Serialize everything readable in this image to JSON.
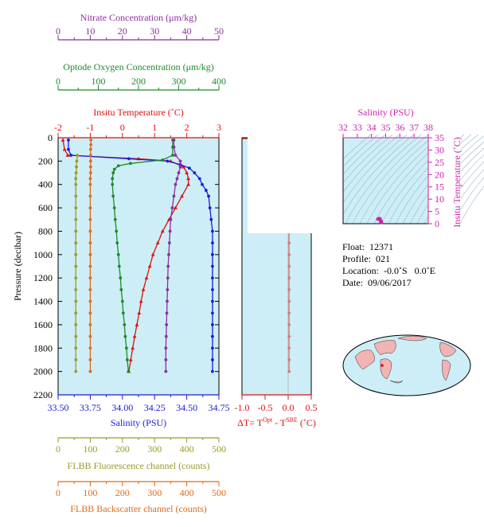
{
  "colors": {
    "nitrate": "#8e2d9e",
    "oxygen": "#1c8a2c",
    "temperature": "#e01010",
    "salinity": "#1a1ae0",
    "fluorescence": "#9a9a2a",
    "backscatter": "#e06a1a",
    "delta": "#f07070",
    "panel_bg": "#cdeef6",
    "magenta": "#cc22aa"
  },
  "axes": {
    "nitrate": {
      "title": "Nitrate Concentration (μm/kg)",
      "min": 0,
      "max": 50,
      "ticks": [
        "0",
        "10",
        "20",
        "30",
        "40",
        "50"
      ]
    },
    "oxygen": {
      "title": "Optode Oxygen Concentration (μm/kg)",
      "min": 0,
      "max": 400,
      "ticks": [
        "0",
        "100",
        "200",
        "300",
        "400"
      ]
    },
    "temperature": {
      "title": "Insitu Temperature (˚C)",
      "min": -2,
      "max": 3,
      "ticks": [
        "-2",
        "-1",
        "0",
        "1",
        "2",
        "3"
      ]
    },
    "salinity": {
      "title": "Salinity (PSU)",
      "min": 33.5,
      "max": 34.75,
      "ticks": [
        "33.50",
        "33.75",
        "34.00",
        "34.25",
        "34.50",
        "34.75"
      ]
    },
    "pressure": {
      "title": "Pressure (decibar)",
      "min": 0,
      "max": 2200,
      "ticks": [
        "0",
        "200",
        "400",
        "600",
        "800",
        "1000",
        "1200",
        "1400",
        "1600",
        "1800",
        "2000",
        "2200"
      ]
    },
    "delta": {
      "title_main": "ΔT= T",
      "sup1": "Opt",
      "mid": " - T",
      "sup2": "SBE",
      "unit": " (˚C)",
      "min": -1.0,
      "max": 0.5,
      "ticks": [
        "-1.0",
        "-0.5",
        "0.0",
        "0.5"
      ]
    },
    "fluorescence": {
      "title": "FLBB Fluorescence channel (counts)",
      "min": 0,
      "max": 500,
      "ticks": [
        "0",
        "100",
        "200",
        "300",
        "400",
        "500"
      ]
    },
    "backscatter": {
      "title": "FLBB Backscatter channel (counts)",
      "min": 0,
      "max": 500,
      "ticks": [
        "0",
        "100",
        "200",
        "300",
        "400",
        "500"
      ]
    },
    "ts_salinity": {
      "title": "Salinity (PSU)",
      "min": 32,
      "max": 38,
      "ticks": [
        "32",
        "33",
        "34",
        "35",
        "36",
        "37",
        "38"
      ]
    },
    "ts_temperature": {
      "title": "Insitu Temperature (˚C)",
      "min": 0,
      "max": 35,
      "ticks": [
        "0",
        "5",
        "10",
        "15",
        "20",
        "25",
        "30",
        "35"
      ]
    }
  },
  "info": {
    "float": "Float:  12371",
    "profile": "Profile:  021",
    "location": "Location:  -0.0˚S   0.0˚E",
    "date": "Date:  09/06/2017"
  },
  "chart_data": {
    "type": "line",
    "y_variable": "Pressure (decibar)",
    "y_reversed": true,
    "series": [
      {
        "name": "Insitu Temperature (˚C)",
        "key": "temperature",
        "marker": "triangle",
        "points": [
          [
            -1.85,
            20
          ],
          [
            -1.8,
            100
          ],
          [
            -1.7,
            150
          ],
          [
            0.5,
            180
          ],
          [
            1.5,
            200
          ],
          [
            1.9,
            250
          ],
          [
            2.0,
            300
          ],
          [
            2.05,
            350
          ],
          [
            2.05,
            400
          ],
          [
            1.85,
            500
          ],
          [
            1.65,
            600
          ],
          [
            1.45,
            700
          ],
          [
            1.25,
            800
          ],
          [
            1.1,
            900
          ],
          [
            0.95,
            1000
          ],
          [
            0.85,
            1100
          ],
          [
            0.75,
            1200
          ],
          [
            0.65,
            1300
          ],
          [
            0.58,
            1400
          ],
          [
            0.52,
            1500
          ],
          [
            0.45,
            1600
          ],
          [
            0.38,
            1700
          ],
          [
            0.32,
            1800
          ],
          [
            0.26,
            1900
          ],
          [
            0.2,
            2000
          ]
        ]
      },
      {
        "name": "Salinity (PSU)",
        "key": "salinity",
        "marker": "circle",
        "points": [
          [
            33.58,
            20
          ],
          [
            33.58,
            100
          ],
          [
            33.6,
            150
          ],
          [
            34.05,
            180
          ],
          [
            34.35,
            200
          ],
          [
            34.45,
            230
          ],
          [
            34.52,
            260
          ],
          [
            34.56,
            300
          ],
          [
            34.6,
            350
          ],
          [
            34.62,
            400
          ],
          [
            34.65,
            450
          ],
          [
            34.67,
            500
          ],
          [
            34.68,
            600
          ],
          [
            34.69,
            700
          ],
          [
            34.7,
            800
          ],
          [
            34.7,
            900
          ],
          [
            34.7,
            1000
          ],
          [
            34.7,
            1100
          ],
          [
            34.7,
            1200
          ],
          [
            34.7,
            1300
          ],
          [
            34.7,
            1400
          ],
          [
            34.7,
            1500
          ],
          [
            34.7,
            1600
          ],
          [
            34.7,
            1700
          ],
          [
            34.7,
            1800
          ],
          [
            34.7,
            1900
          ],
          [
            34.7,
            2000
          ]
        ]
      },
      {
        "name": "Optode Oxygen Concentration (μm/kg)",
        "key": "oxygen",
        "marker": "circle",
        "points": [
          [
            285,
            20
          ],
          [
            285,
            80
          ],
          [
            285,
            150
          ],
          [
            260,
            190
          ],
          [
            180,
            220
          ],
          [
            150,
            240
          ],
          [
            140,
            270
          ],
          [
            137,
            300
          ],
          [
            135,
            350
          ],
          [
            135,
            400
          ],
          [
            137,
            500
          ],
          [
            140,
            600
          ],
          [
            142,
            700
          ],
          [
            145,
            800
          ],
          [
            147,
            900
          ],
          [
            150,
            1000
          ],
          [
            152,
            1100
          ],
          [
            155,
            1200
          ],
          [
            157,
            1300
          ],
          [
            160,
            1400
          ],
          [
            162,
            1500
          ],
          [
            165,
            1600
          ],
          [
            167,
            1700
          ],
          [
            170,
            1800
          ],
          [
            172,
            1900
          ],
          [
            175,
            2000
          ]
        ]
      },
      {
        "name": "Nitrate Concentration (μm/kg)",
        "key": "nitrate",
        "marker": "circle",
        "points": [
          [
            36,
            20
          ],
          [
            36,
            80
          ],
          [
            36.5,
            150
          ],
          [
            38,
            200
          ],
          [
            38,
            250
          ],
          [
            37.5,
            300
          ],
          [
            37,
            350
          ],
          [
            36.5,
            400
          ],
          [
            36,
            500
          ],
          [
            35.5,
            600
          ],
          [
            35,
            700
          ],
          [
            34.8,
            800
          ],
          [
            34.6,
            900
          ],
          [
            34.4,
            1000
          ],
          [
            34.2,
            1100
          ],
          [
            34.1,
            1200
          ],
          [
            34,
            1300
          ],
          [
            33.9,
            1400
          ],
          [
            33.8,
            1500
          ],
          [
            33.7,
            1600
          ],
          [
            33.6,
            1700
          ],
          [
            33.5,
            1800
          ],
          [
            33.5,
            1900
          ],
          [
            33.5,
            2000
          ]
        ]
      },
      {
        "name": "FLBB Fluorescence channel (counts)",
        "key": "fluorescence",
        "marker": "circle",
        "points": [
          [
            60,
            150
          ],
          [
            58,
            200
          ],
          [
            57,
            250
          ],
          [
            56,
            300
          ],
          [
            55,
            350
          ],
          [
            55,
            400
          ],
          [
            55,
            500
          ],
          [
            55,
            600
          ],
          [
            55,
            700
          ],
          [
            55,
            800
          ],
          [
            55,
            900
          ],
          [
            55,
            1000
          ],
          [
            55,
            1100
          ],
          [
            55,
            1200
          ],
          [
            55,
            1300
          ],
          [
            55,
            1400
          ],
          [
            55,
            1500
          ],
          [
            55,
            1600
          ],
          [
            55,
            1700
          ],
          [
            55,
            1800
          ],
          [
            55,
            1900
          ],
          [
            55,
            2000
          ]
        ]
      },
      {
        "name": "FLBB Backscatter channel (counts)",
        "key": "backscatter",
        "marker": "circle",
        "points": [
          [
            102,
            20
          ],
          [
            102,
            60
          ],
          [
            101,
            100
          ],
          [
            101,
            150
          ],
          [
            101,
            200
          ],
          [
            101,
            250
          ],
          [
            101,
            300
          ],
          [
            100,
            350
          ],
          [
            100,
            400
          ],
          [
            100,
            500
          ],
          [
            100,
            600
          ],
          [
            100,
            700
          ],
          [
            100,
            800
          ],
          [
            100,
            900
          ],
          [
            100,
            1000
          ],
          [
            100,
            1100
          ],
          [
            100,
            1200
          ],
          [
            100,
            1300
          ],
          [
            100,
            1400
          ],
          [
            100,
            1500
          ],
          [
            100,
            1600
          ],
          [
            100,
            1700
          ],
          [
            100,
            1800
          ],
          [
            100,
            1900
          ],
          [
            100,
            2000
          ]
        ]
      },
      {
        "name": "ΔT",
        "key": "delta",
        "marker": "circle",
        "points": [
          [
            0.05,
            20
          ],
          [
            0.05,
            100
          ],
          [
            0.05,
            150
          ],
          [
            0.04,
            200
          ],
          [
            0.03,
            250
          ],
          [
            0.02,
            300
          ],
          [
            0.02,
            350
          ],
          [
            0.02,
            400
          ],
          [
            0.02,
            500
          ],
          [
            0.02,
            600
          ],
          [
            0.02,
            700
          ],
          [
            0.02,
            800
          ],
          [
            0.02,
            900
          ],
          [
            0.02,
            1000
          ],
          [
            0.02,
            1100
          ],
          [
            0.02,
            1200
          ],
          [
            0.02,
            1300
          ],
          [
            0.02,
            1400
          ],
          [
            0.02,
            1500
          ],
          [
            0.02,
            1600
          ],
          [
            0.02,
            1700
          ],
          [
            0.02,
            1800
          ],
          [
            0.02,
            1900
          ],
          [
            0.02,
            2000
          ]
        ]
      }
    ],
    "ts_diagram": {
      "points": [
        [
          34.6,
          2.0
        ],
        [
          34.62,
          1.5
        ],
        [
          34.68,
          1.0
        ],
        [
          34.7,
          0.5
        ],
        [
          34.55,
          2.1
        ],
        [
          34.45,
          1.9
        ],
        [
          34.65,
          0.8
        ]
      ]
    }
  }
}
